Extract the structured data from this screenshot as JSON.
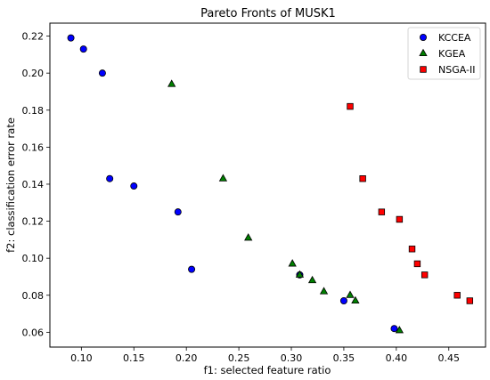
{
  "chart_data": {
    "type": "scatter",
    "title": "Pareto Fronts of MUSK1",
    "xlabel": "f1: selected feature ratio",
    "ylabel": "f2: classification error rate",
    "xlim": [
      0.07,
      0.485
    ],
    "ylim": [
      0.052,
      0.227
    ],
    "xticks": [
      0.1,
      0.15,
      0.2,
      0.25,
      0.3,
      0.35,
      0.4,
      0.45
    ],
    "xtick_labels": [
      "0.10",
      "0.15",
      "0.20",
      "0.25",
      "0.30",
      "0.35",
      "0.40",
      "0.45"
    ],
    "yticks": [
      0.06,
      0.08,
      0.1,
      0.12,
      0.14,
      0.16,
      0.18,
      0.2,
      0.22
    ],
    "ytick_labels": [
      "0.06",
      "0.08",
      "0.10",
      "0.12",
      "0.14",
      "0.16",
      "0.18",
      "0.20",
      "0.22"
    ],
    "grid": false,
    "legend_position": "top-right",
    "series": [
      {
        "name": "KCCEA",
        "marker": "circle",
        "color": "#0000ff",
        "points": [
          [
            0.09,
            0.219
          ],
          [
            0.102,
            0.213
          ],
          [
            0.12,
            0.2
          ],
          [
            0.127,
            0.143
          ],
          [
            0.15,
            0.139
          ],
          [
            0.192,
            0.125
          ],
          [
            0.205,
            0.094
          ],
          [
            0.308,
            0.091
          ],
          [
            0.35,
            0.077
          ],
          [
            0.398,
            0.062
          ]
        ]
      },
      {
        "name": "KGEA",
        "marker": "triangle",
        "color": "#008000",
        "points": [
          [
            0.186,
            0.194
          ],
          [
            0.235,
            0.143
          ],
          [
            0.259,
            0.111
          ],
          [
            0.301,
            0.097
          ],
          [
            0.308,
            0.091
          ],
          [
            0.32,
            0.088
          ],
          [
            0.331,
            0.082
          ],
          [
            0.356,
            0.08
          ],
          [
            0.361,
            0.077
          ],
          [
            0.403,
            0.061
          ]
        ]
      },
      {
        "name": "NSGA-II",
        "marker": "square",
        "color": "#ff0000",
        "points": [
          [
            0.356,
            0.182
          ],
          [
            0.368,
            0.143
          ],
          [
            0.386,
            0.125
          ],
          [
            0.403,
            0.121
          ],
          [
            0.415,
            0.105
          ],
          [
            0.42,
            0.097
          ],
          [
            0.427,
            0.091
          ],
          [
            0.458,
            0.08
          ],
          [
            0.47,
            0.077
          ]
        ]
      }
    ]
  }
}
